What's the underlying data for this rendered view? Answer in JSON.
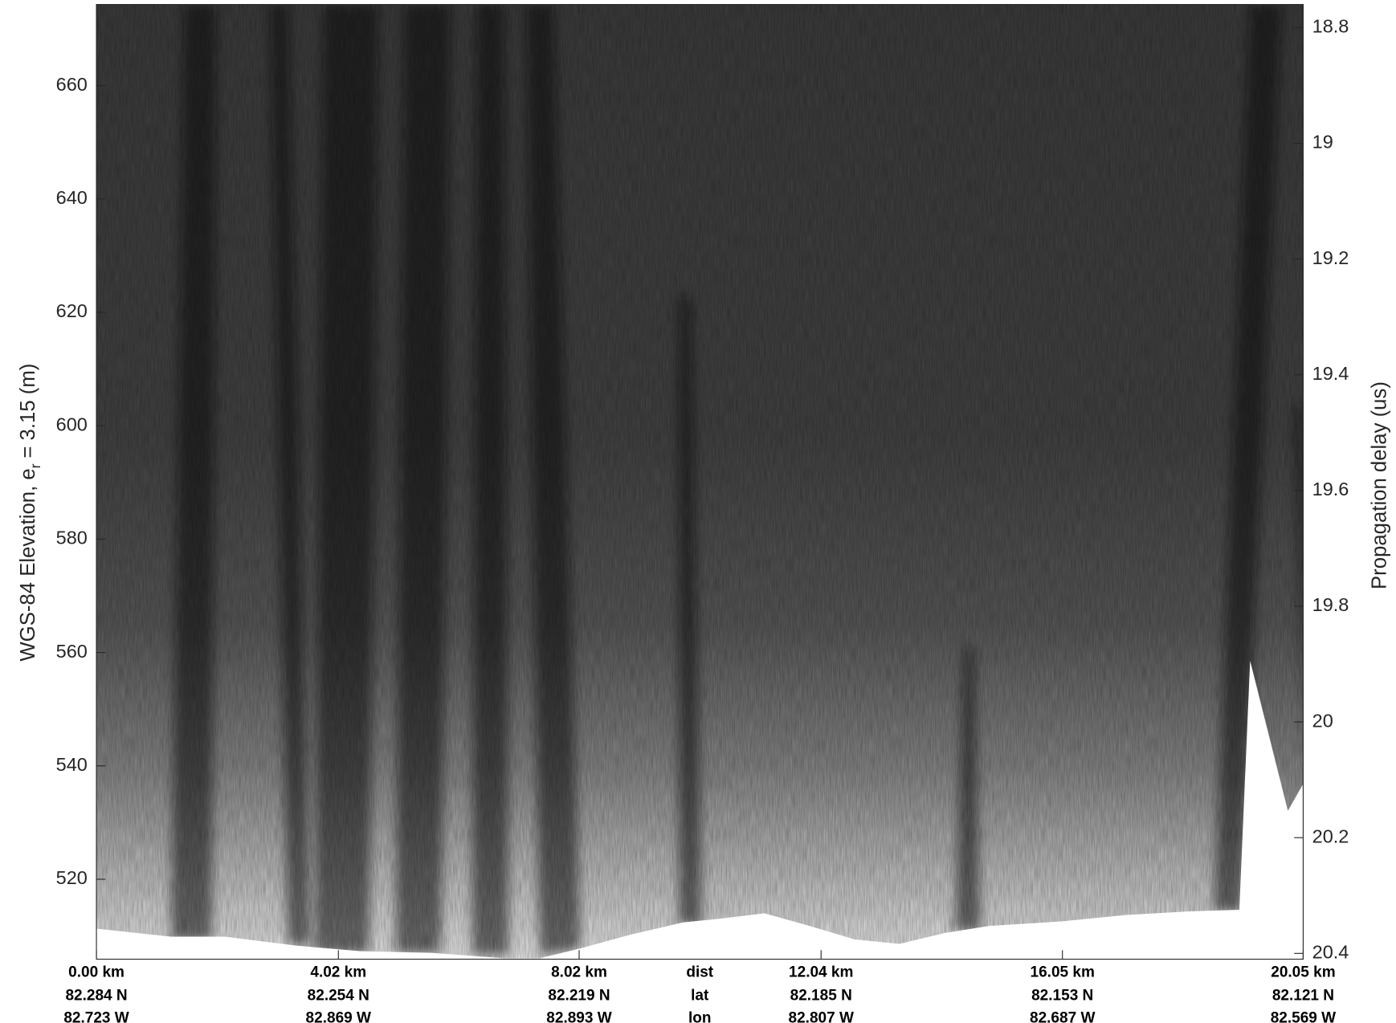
{
  "chart_data": {
    "type": "echogram",
    "ylabel": [
      "WGS-84 Elevation, e",
      "r",
      "= 3.15 (m)"
    ],
    "y2label": "Propagation delay (us)",
    "xlim": [
      0,
      20.05
    ],
    "xticks": [
      {
        "value": 0,
        "label": "0.00 km"
      },
      {
        "value": 4.02,
        "label": "4.02 km"
      },
      {
        "value": 8.02,
        "label": "8.02 km"
      },
      {
        "value": 12.04,
        "label": "12.04 km"
      },
      {
        "value": 16.05,
        "label": "16.05 km"
      },
      {
        "value": 20.05,
        "label": "20.05 km"
      }
    ],
    "lat_labels": [
      "82.284 N",
      "82.254 N",
      "82.219 N",
      "82.185 N",
      "82.153 N",
      "82.121 N"
    ],
    "lon_labels": [
      "82.723 W",
      "82.869 W",
      "82.893 W",
      "82.807 W",
      "82.687 W",
      "82.569 W"
    ],
    "row_labels": [
      "dist",
      "lat",
      "lon"
    ],
    "ylim": [
      505.9,
      674.3
    ],
    "yticks": [
      520,
      540,
      560,
      580,
      600,
      620,
      640,
      660
    ],
    "y2lim": [
      18.76,
      20.41
    ],
    "y2ticks": [
      18.8,
      19,
      19.2,
      19.4,
      19.6,
      19.8,
      20,
      20.2,
      20.4
    ]
  }
}
